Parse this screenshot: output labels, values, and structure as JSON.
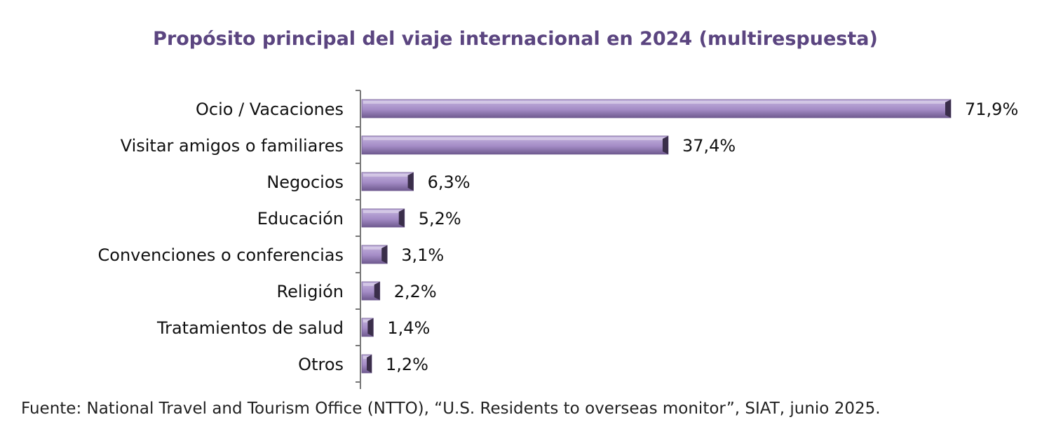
{
  "colors": {
    "title": "#5b4580",
    "bar_top": "#c4b3de",
    "bar_mid": "#a48cc6",
    "bar_bottom": "#6f5a8f",
    "bar_end": "#3a2e4a",
    "axis": "#777777"
  },
  "chart_data": {
    "type": "bar",
    "orientation": "horizontal",
    "title": "Propósito principal del viaje internacional en 2024 (multirespuesta)",
    "categories": [
      "Ocio / Vacaciones",
      "Visitar amigos o familiares",
      "Negocios",
      "Educación",
      "Convenciones o conferencias",
      "Religión",
      "Tratamientos de salud",
      "Otros"
    ],
    "values": [
      71.9,
      37.4,
      6.3,
      5.2,
      3.1,
      2.2,
      1.4,
      1.2
    ],
    "value_labels": [
      "71,9%",
      "37,4%",
      "6,3%",
      "5,2%",
      "3,1%",
      "2,2%",
      "1,4%",
      "1,2%"
    ],
    "unit": "%",
    "xlim": [
      0,
      72
    ],
    "grid": false,
    "legend": "none"
  },
  "footer": {
    "source": "Fuente: National Travel and Tourism Office (NTTO), “U.S. Residents to overseas monitor”, SIAT, junio 2025."
  }
}
